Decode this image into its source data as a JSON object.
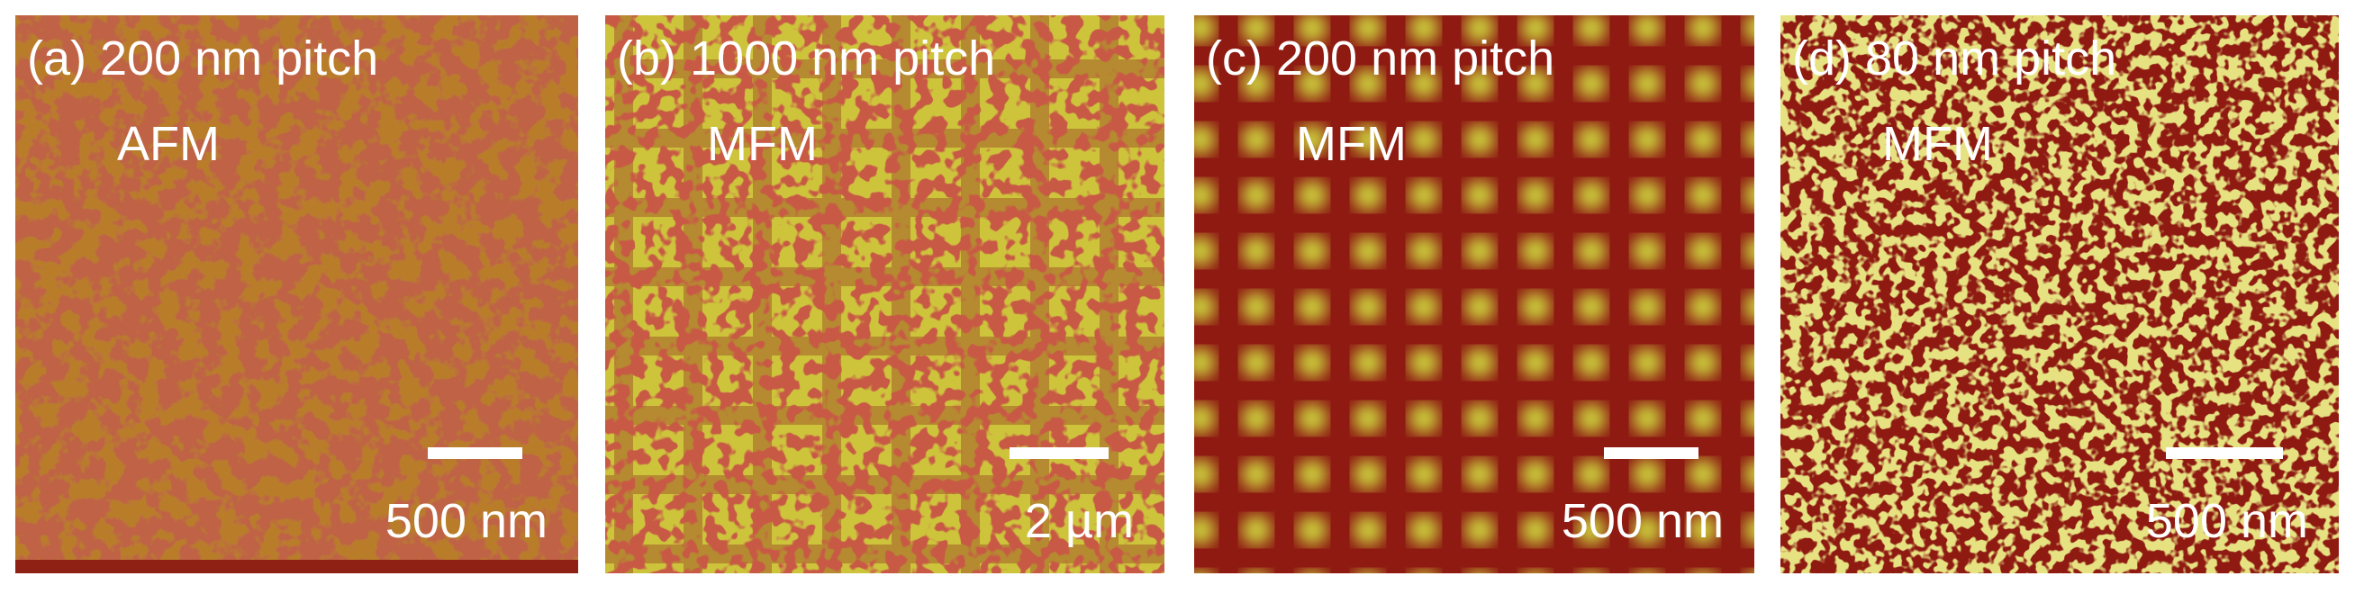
{
  "panels": [
    {
      "label": "(a) 200 nm pitch",
      "mode": "AFM",
      "scale_bar": "500 nm"
    },
    {
      "label": "(b) 1000 nm pitch",
      "mode": "MFM",
      "scale_bar": "2 µm"
    },
    {
      "label": "(c) 200 nm pitch",
      "mode": "MFM",
      "scale_bar": "500 nm"
    },
    {
      "label": "(d) 80 nm pitch",
      "mode": "MFM",
      "scale_bar": "500 nm"
    }
  ]
}
